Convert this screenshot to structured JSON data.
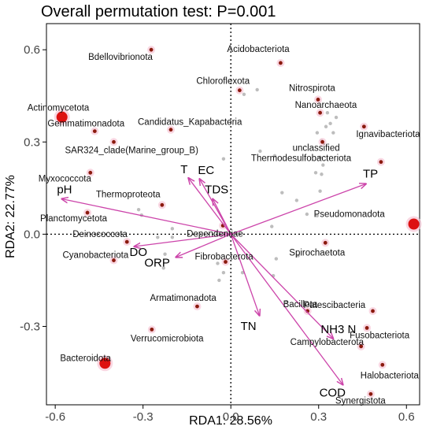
{
  "chart_data": {
    "type": "scatter",
    "title": "Overall permutation test: P=0.001",
    "xlabel": "RDA1: 28.56%",
    "ylabel": "RDA2: 22.77%",
    "xlim": [
      -0.63,
      0.645
    ],
    "ylim": [
      -0.555,
      0.685
    ],
    "xticks": [
      -0.6,
      -0.3,
      0.0,
      0.3,
      0.6
    ],
    "xtick_labels": [
      "-0.6",
      "-0.3",
      "0.0",
      "0.3",
      "0.6"
    ],
    "yticks": [
      -0.3,
      0.0,
      0.3,
      0.6
    ],
    "ytick_labels": [
      "-0.3",
      "0.0",
      "0.3",
      "0.6"
    ],
    "grid": false,
    "colors": {
      "taxa": "#8b1a0e",
      "taxa_halo": "#f6c6d6",
      "large_taxa": "#dd1111",
      "arrows": "#cc44aa",
      "samples": "#bdbdbd",
      "axes": "#000000",
      "ref_lines": "#000000"
    },
    "environment_vectors": [
      {
        "label": "TP",
        "x": 0.462,
        "y": 0.164
      },
      {
        "label": "T",
        "x": -0.145,
        "y": 0.183
      },
      {
        "label": "EC",
        "x": -0.107,
        "y": 0.18
      },
      {
        "label": "TDS",
        "x": -0.062,
        "y": 0.115
      },
      {
        "label": "pH",
        "x": -0.578,
        "y": 0.115
      },
      {
        "label": "DO",
        "x": -0.33,
        "y": -0.04
      },
      {
        "label": "ORP",
        "x": -0.188,
        "y": -0.075
      },
      {
        "label": "TN",
        "x": 0.098,
        "y": -0.265
      },
      {
        "label": "NH3_N",
        "x": 0.35,
        "y": -0.34
      },
      {
        "label": "COD",
        "x": 0.383,
        "y": -0.49
      }
    ],
    "taxa": [
      {
        "name": "Bdellovibrionota",
        "x": -0.272,
        "y": 0.6
      },
      {
        "name": "Acidobacteriota",
        "x": 0.17,
        "y": 0.557
      },
      {
        "name": "Chloroflexota",
        "x": 0.03,
        "y": 0.468
      },
      {
        "name": "Nitrospirota",
        "x": 0.298,
        "y": 0.438
      },
      {
        "name": "Nanoarchaeota",
        "x": 0.305,
        "y": 0.395
      },
      {
        "name": "Actinomycetota",
        "x": -0.577,
        "y": 0.381,
        "size": "large"
      },
      {
        "name": "Gemmatimonadota",
        "x": -0.465,
        "y": 0.335
      },
      {
        "name": "Candidatus_Kapabacteria",
        "x": -0.205,
        "y": 0.34
      },
      {
        "name": "Ignavibacteriota",
        "x": 0.455,
        "y": 0.35
      },
      {
        "name": "SAR324_clade(Marine_group_B)",
        "x": -0.4,
        "y": 0.3
      },
      {
        "name": "unclassified",
        "x": 0.313,
        "y": 0.3
      },
      {
        "name": "Thermodesulfobacteriota",
        "x": 0.513,
        "y": 0.235
      },
      {
        "name": "Myxococcota",
        "x": -0.48,
        "y": 0.2
      },
      {
        "name": "Thermoproteota",
        "x": -0.235,
        "y": 0.095
      },
      {
        "name": "Planctomycetota",
        "x": -0.49,
        "y": 0.07
      },
      {
        "name": "Dependentiae",
        "x": -0.027,
        "y": 0.028
      },
      {
        "name": "Pseudomonadota",
        "x": 0.625,
        "y": 0.033,
        "size": "large"
      },
      {
        "name": "Deinococcota",
        "x": -0.355,
        "y": -0.025
      },
      {
        "name": "Spirochaetota",
        "x": 0.323,
        "y": -0.028
      },
      {
        "name": "Cyanobacteriota",
        "x": -0.4,
        "y": -0.085
      },
      {
        "name": "Fibrobacterota",
        "x": -0.018,
        "y": -0.09
      },
      {
        "name": "Armatimonadota",
        "x": -0.115,
        "y": -0.235
      },
      {
        "name": "Bacillota",
        "x": 0.262,
        "y": -0.25
      },
      {
        "name": "Patescibacteria",
        "x": 0.485,
        "y": -0.25
      },
      {
        "name": "Fusobacteriota",
        "x": 0.465,
        "y": -0.305
      },
      {
        "name": "Verrucomicrobiota",
        "x": -0.27,
        "y": -0.31
      },
      {
        "name": "Campylobacterota",
        "x": 0.445,
        "y": -0.365
      },
      {
        "name": "Bacteroidota",
        "x": -0.43,
        "y": -0.42,
        "size": "large"
      },
      {
        "name": "Halobacteriota",
        "x": 0.518,
        "y": -0.425
      },
      {
        "name": "Synergistota",
        "x": 0.478,
        "y": -0.52
      }
    ],
    "samples": [
      {
        "x": 0.09,
        "y": 0.47
      },
      {
        "x": 0.045,
        "y": 0.455
      },
      {
        "x": 0.33,
        "y": 0.395
      },
      {
        "x": 0.36,
        "y": 0.38
      },
      {
        "x": 0.34,
        "y": 0.36
      },
      {
        "x": 0.325,
        "y": 0.35
      },
      {
        "x": 0.35,
        "y": 0.33
      },
      {
        "x": 0.295,
        "y": 0.33
      },
      {
        "x": 0.31,
        "y": 0.305
      },
      {
        "x": 0.1,
        "y": 0.27
      },
      {
        "x": 0.15,
        "y": 0.255
      },
      {
        "x": -0.025,
        "y": 0.245
      },
      {
        "x": 0.305,
        "y": 0.25
      },
      {
        "x": 0.315,
        "y": 0.225
      },
      {
        "x": 0.29,
        "y": 0.2
      },
      {
        "x": 0.31,
        "y": 0.195
      },
      {
        "x": 0.305,
        "y": 0.14
      },
      {
        "x": 0.295,
        "y": 0.06
      },
      {
        "x": 0.26,
        "y": 0.065
      },
      {
        "x": 0.14,
        "y": 0.025
      },
      {
        "x": -0.2,
        "y": 0.018
      },
      {
        "x": -0.2,
        "y": -0.01
      },
      {
        "x": -0.25,
        "y": -0.01
      },
      {
        "x": -0.305,
        "y": 0.062
      },
      {
        "x": -0.315,
        "y": 0.08
      },
      {
        "x": 0.175,
        "y": 0.135
      },
      {
        "x": 0.225,
        "y": 0.11
      },
      {
        "x": -0.025,
        "y": -0.125
      },
      {
        "x": -0.04,
        "y": -0.15
      },
      {
        "x": 0.04,
        "y": -0.125
      },
      {
        "x": 0.155,
        "y": -0.08
      },
      {
        "x": 0.145,
        "y": -0.135
      },
      {
        "x": 0.23,
        "y": -0.07
      },
      {
        "x": -0.045,
        "y": -0.095
      },
      {
        "x": -0.23,
        "y": -0.11
      },
      {
        "x": -0.225,
        "y": -0.065
      },
      {
        "x": 0.19,
        "y": -0.22
      }
    ]
  }
}
